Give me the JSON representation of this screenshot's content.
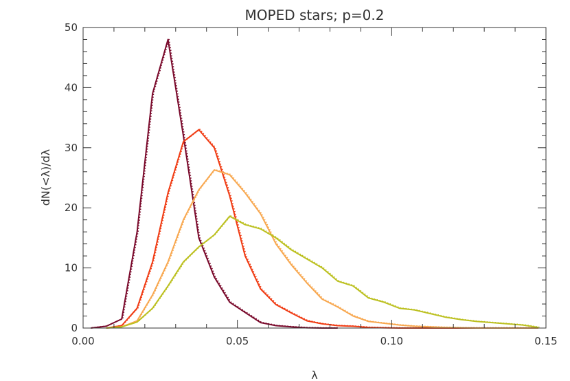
{
  "chart_data": {
    "type": "line",
    "title": "MOPED stars; p=0.2",
    "xlabel": "λ",
    "ylabel": "dN(<λ)/dλ",
    "xlim": [
      0.0,
      0.15
    ],
    "ylim": [
      0,
      50
    ],
    "xticks": [
      "0.00",
      "0.05",
      "0.10",
      "0.15"
    ],
    "yticks": [
      "0",
      "10",
      "20",
      "30",
      "40",
      "50"
    ],
    "grid": false,
    "legend": "none",
    "series": [
      {
        "color": "#7a0a2c",
        "x": [
          0.0025,
          0.0075,
          0.0125,
          0.0175,
          0.0225,
          0.0275,
          0.0325,
          0.0375,
          0.0425,
          0.0475,
          0.0525,
          0.0575,
          0.0625,
          0.0675,
          0.0725,
          0.0775,
          0.0825
        ],
        "y": [
          0.0,
          0.3,
          1.5,
          16,
          39,
          48,
          32,
          15,
          8.5,
          4.3,
          2.6,
          0.9,
          0.4,
          0.2,
          0.05,
          0.0,
          0.0
        ]
      },
      {
        "color": "#f03c14",
        "x": [
          0.0075,
          0.0125,
          0.0175,
          0.0225,
          0.0275,
          0.0325,
          0.0375,
          0.0425,
          0.0475,
          0.0525,
          0.0575,
          0.0625,
          0.0675,
          0.0725,
          0.0775,
          0.0825,
          0.0875,
          0.0925,
          0.0975,
          0.1025,
          0.1075,
          0.1125,
          0.1175,
          0.1225,
          0.1275,
          0.1325,
          0.1375,
          0.1425,
          0.1475
        ],
        "y": [
          0.0,
          0.4,
          3.3,
          11,
          22.5,
          31,
          33,
          30,
          22,
          12,
          6.5,
          3.9,
          2.5,
          1.2,
          0.7,
          0.4,
          0.3,
          0.1,
          0.05,
          0.0,
          0.0,
          0.0,
          0.0,
          0.0,
          0.0,
          0.0,
          0.0,
          0.0,
          0.0
        ]
      },
      {
        "color": "#f8a850",
        "x": [
          0.0075,
          0.0125,
          0.0175,
          0.0225,
          0.0275,
          0.0325,
          0.0375,
          0.0425,
          0.0475,
          0.0525,
          0.0575,
          0.0625,
          0.0675,
          0.0725,
          0.0775,
          0.0825,
          0.0875,
          0.0925,
          0.0975,
          0.1025,
          0.1075,
          0.1125,
          0.1175,
          0.1225,
          0.1275,
          0.1325,
          0.1375,
          0.1425,
          0.1475
        ],
        "y": [
          0.0,
          0.2,
          1.2,
          5.5,
          11,
          18,
          23,
          26.3,
          25.5,
          22.5,
          19,
          14,
          10.5,
          7.5,
          4.8,
          3.5,
          2.0,
          1.1,
          0.8,
          0.5,
          0.3,
          0.2,
          0.1,
          0.05,
          0.0,
          0.0,
          0.0,
          0.0,
          0.0
        ]
      },
      {
        "color": "#bcc020",
        "x": [
          0.0075,
          0.0125,
          0.0175,
          0.0225,
          0.0275,
          0.0325,
          0.0375,
          0.0425,
          0.0475,
          0.0525,
          0.0575,
          0.0625,
          0.0675,
          0.0725,
          0.0775,
          0.0825,
          0.0875,
          0.0925,
          0.0975,
          0.1025,
          0.1075,
          0.1125,
          0.1175,
          0.1225,
          0.1275,
          0.1325,
          0.1375,
          0.1425,
          0.1475
        ],
        "y": [
          0.0,
          0.2,
          1.0,
          3.3,
          7.0,
          11,
          13.5,
          15.5,
          18.6,
          17.2,
          16.5,
          15,
          13,
          11.5,
          10,
          7.8,
          7,
          5,
          4.3,
          3.3,
          3.0,
          2.4,
          1.8,
          1.4,
          1.1,
          0.9,
          0.7,
          0.5,
          0.1
        ]
      }
    ]
  }
}
